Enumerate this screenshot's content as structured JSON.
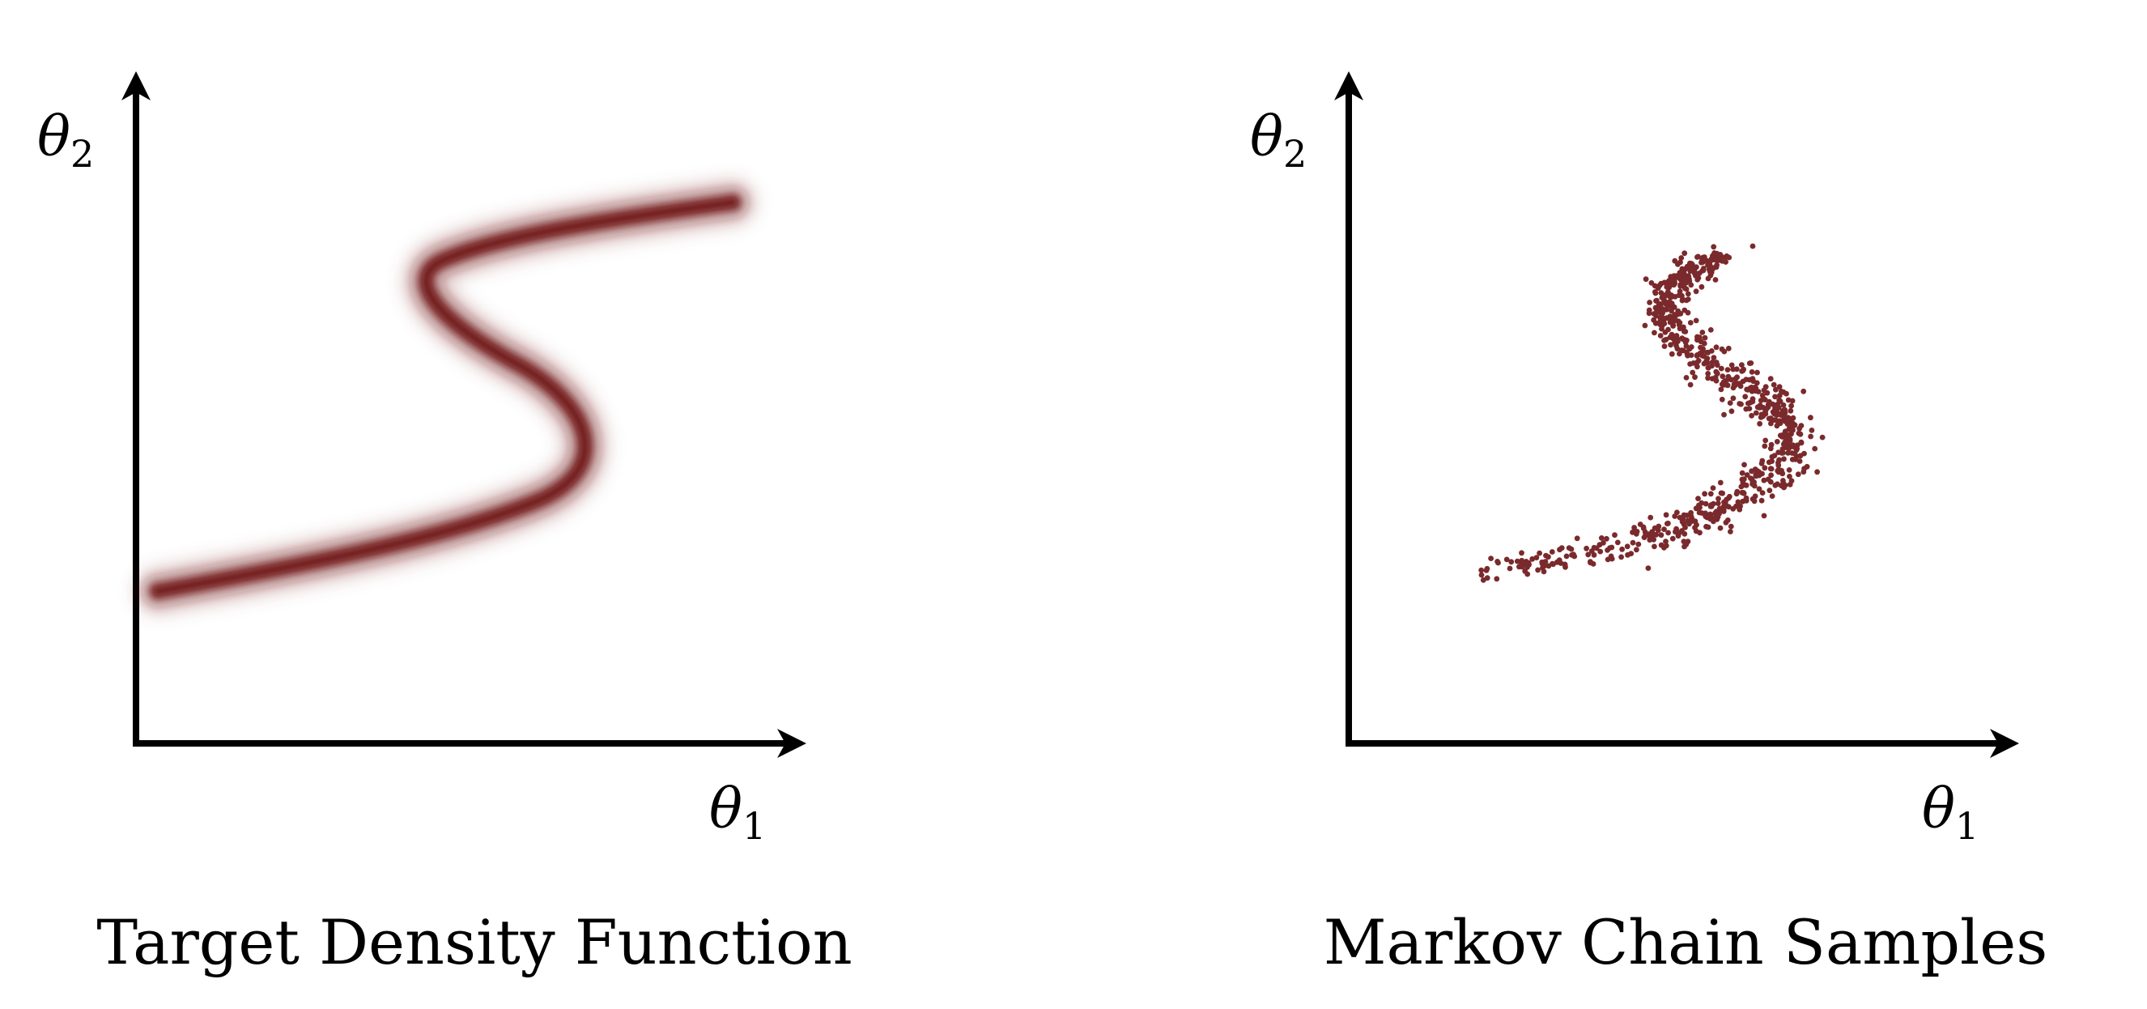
{
  "panels": [
    {
      "caption": "Target Density Function",
      "x_axis": {
        "symbol": "θ",
        "subscript": "1"
      },
      "y_axis": {
        "symbol": "θ",
        "subscript": "2"
      },
      "content": "density-band"
    },
    {
      "caption": "Markov Chain Samples",
      "x_axis": {
        "symbol": "θ",
        "subscript": "1"
      },
      "y_axis": {
        "symbol": "θ",
        "subscript": "2"
      },
      "content": "scatter-samples"
    }
  ],
  "colors": {
    "density": "#6e1216",
    "samples": "#7a2a2c",
    "axes": "#000000"
  }
}
